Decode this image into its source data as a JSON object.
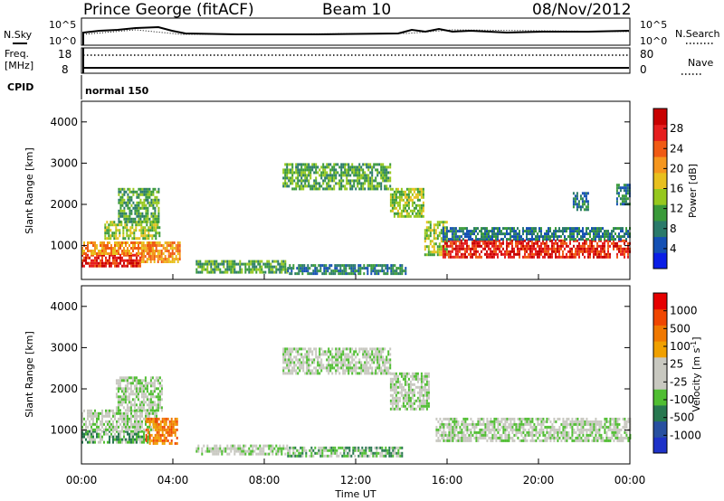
{
  "header": {
    "station": "Prince George (fitACF)",
    "beam": "Beam 10",
    "date": "08/Nov/2012"
  },
  "summary": {
    "left_labels": {
      "nsky": "N.Sky",
      "freq": "Freq.",
      "mhz": "[MHz]",
      "cpid": "CPID"
    },
    "right_labels": {
      "nsearch": "N.Search",
      "nave": "Nave"
    },
    "noise_ticks": {
      "top": "10^5",
      "bottom": "10^0"
    },
    "freq_ticks": {
      "top": "18",
      "bottom": "8"
    },
    "nave_ticks": {
      "top": "80",
      "bottom": "0"
    },
    "program": "normal 150"
  },
  "colors": {
    "power": [
      "#0a1ee6",
      "#1450b4",
      "#2a7a6a",
      "#3a9a3a",
      "#96c81e",
      "#e8c01e",
      "#f5961e",
      "#f05a14",
      "#e61e1e",
      "#c80000"
    ],
    "velocity": [
      "#1e32c8",
      "#2850a0",
      "#287850",
      "#50be32",
      "#c8c8c0",
      "#c8c8c0",
      "#f0a000",
      "#f07800",
      "#f04600",
      "#e60000"
    ]
  },
  "chart_data": [
    {
      "type": "heatmap",
      "name": "power",
      "xlabel": "Time UT",
      "ylabel": "Slant Range [km]",
      "xlim": [
        0,
        24
      ],
      "ylim": [
        180,
        4500
      ],
      "yticks": [
        "1000",
        "2000",
        "3000",
        "4000"
      ],
      "colorbar": {
        "label": "Power [dB]",
        "range": [
          0,
          32
        ],
        "ticks": [
          "4",
          "8",
          "12",
          "16",
          "20",
          "24",
          "28"
        ]
      },
      "regions": [
        {
          "t0": 0.0,
          "t1": 2.6,
          "r0": 500,
          "r1": 800,
          "level": 8
        },
        {
          "t0": 0.0,
          "t1": 3.2,
          "r0": 820,
          "r1": 1100,
          "level": 6
        },
        {
          "t0": 2.6,
          "t1": 4.3,
          "r0": 600,
          "r1": 1100,
          "level": 6
        },
        {
          "t0": 1.0,
          "t1": 3.4,
          "r0": 1150,
          "r1": 1600,
          "level": 4
        },
        {
          "t0": 1.6,
          "t1": 3.4,
          "r0": 1600,
          "r1": 2400,
          "level": 3
        },
        {
          "t0": 5.0,
          "t1": 9.0,
          "r0": 350,
          "r1": 650,
          "level": 3
        },
        {
          "t0": 9.0,
          "t1": 14.2,
          "r0": 350,
          "r1": 550,
          "level": 2
        },
        {
          "t0": 8.8,
          "t1": 13.5,
          "r0": 2400,
          "r1": 3000,
          "level": 3
        },
        {
          "t0": 13.5,
          "t1": 15.0,
          "r0": 1700,
          "r1": 2400,
          "level": 4
        },
        {
          "t0": 15.0,
          "t1": 16.0,
          "r0": 800,
          "r1": 1600,
          "level": 4
        },
        {
          "t0": 15.8,
          "t1": 24.0,
          "r0": 750,
          "r1": 1150,
          "level": 8
        },
        {
          "t0": 15.8,
          "t1": 24.0,
          "r0": 1150,
          "r1": 1450,
          "level": 2
        },
        {
          "t0": 21.5,
          "t1": 22.2,
          "r0": 1900,
          "r1": 2300,
          "level": 2
        },
        {
          "t0": 23.4,
          "t1": 24.0,
          "r0": 2000,
          "r1": 2500,
          "level": 2
        }
      ]
    },
    {
      "type": "heatmap",
      "name": "velocity",
      "xlabel": "Time UT",
      "ylabel": "Slant Range [km]",
      "xlim": [
        0,
        24
      ],
      "ylim": [
        180,
        4500
      ],
      "yticks": [
        "1000",
        "2000",
        "3000",
        "4000"
      ],
      "xticks": [
        "00:00",
        "04:00",
        "08:00",
        "12:00",
        "16:00",
        "20:00",
        "00:00"
      ],
      "colorbar": {
        "label": "Velocity [m s",
        "label_sup": "-1",
        "label_end": "]",
        "ticks": [
          "1000",
          "500",
          "100",
          "25",
          "-25",
          "-100",
          "-500",
          "-1000"
        ]
      },
      "regions": [
        {
          "t0": 0.0,
          "t1": 3.0,
          "r0": 700,
          "r1": 1000,
          "level": 3
        },
        {
          "t0": 0.0,
          "t1": 3.3,
          "r0": 1000,
          "r1": 1500,
          "level": 4
        },
        {
          "t0": 1.5,
          "t1": 3.5,
          "r0": 1500,
          "r1": 2300,
          "level": 4
        },
        {
          "t0": 2.8,
          "t1": 4.2,
          "r0": 700,
          "r1": 1300,
          "level": 7
        },
        {
          "t0": 5.0,
          "t1": 9.0,
          "r0": 400,
          "r1": 650,
          "level": 4
        },
        {
          "t0": 8.8,
          "t1": 13.5,
          "r0": 2400,
          "r1": 3000,
          "level": 4
        },
        {
          "t0": 13.5,
          "t1": 15.2,
          "r0": 1500,
          "r1": 2400,
          "level": 4
        },
        {
          "t0": 15.5,
          "t1": 24.0,
          "r0": 750,
          "r1": 1300,
          "level": 4
        },
        {
          "t0": 9.0,
          "t1": 14.0,
          "r0": 400,
          "r1": 600,
          "level": 3
        }
      ]
    }
  ]
}
